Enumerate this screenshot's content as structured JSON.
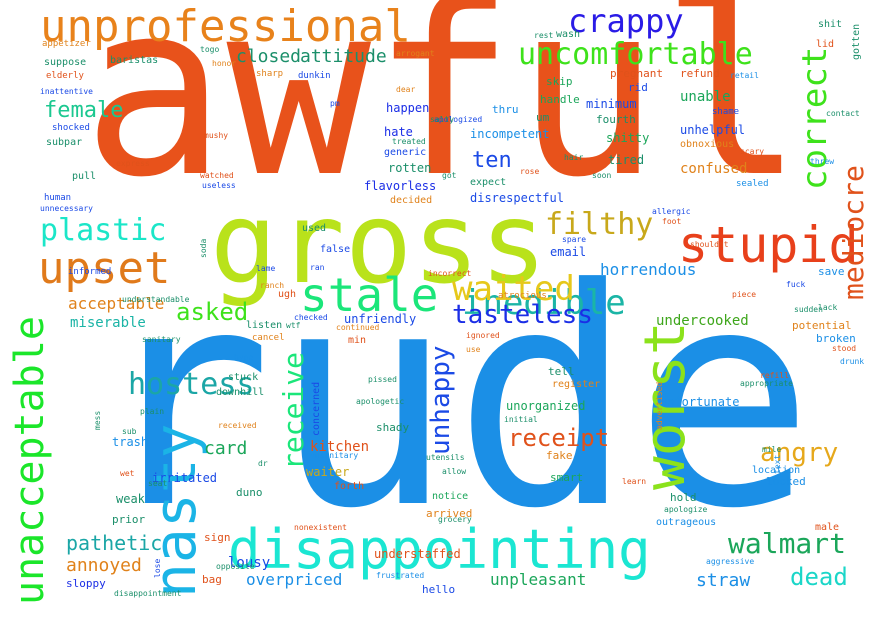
{
  "words": [
    {
      "id": "awful",
      "text": "awful",
      "color": "#e8521b"
    },
    {
      "id": "rude",
      "text": "rude",
      "color": "#1b8fe6"
    },
    {
      "id": "gross",
      "text": "gross",
      "color": "#b9e21b"
    },
    {
      "id": "disappointing",
      "text": "disappointing",
      "color": "#1be6d2"
    },
    {
      "id": "unprofessional",
      "text": "unprofessional",
      "color": "#e8821b"
    },
    {
      "id": "stupid",
      "text": "stupid",
      "color": "#e8401b"
    },
    {
      "id": "upset",
      "text": "upset",
      "color": "#e07a1b"
    },
    {
      "id": "stale",
      "text": "stale",
      "color": "#1be67a"
    },
    {
      "id": "nasty",
      "text": "nasty",
      "color": "#1bb4e6"
    },
    {
      "id": "unacceptable",
      "text": "unacceptable",
      "color": "#1be62a"
    },
    {
      "id": "worst",
      "text": "worst",
      "color": "#8be21b"
    },
    {
      "id": "crappy",
      "text": "crappy",
      "color": "#2a1be6"
    },
    {
      "id": "uncomfortable",
      "text": "uncomfortable",
      "color": "#3ee21b"
    },
    {
      "id": "inedible",
      "text": "inedible",
      "color": "#1bb5a6"
    },
    {
      "id": "waited",
      "text": "waited",
      "color": "#e6c81b"
    },
    {
      "id": "filthy",
      "text": "filthy",
      "color": "#c8a81b"
    },
    {
      "id": "correct",
      "text": "correct",
      "color": "#3ee21b"
    },
    {
      "id": "mediocre",
      "text": "mediocre",
      "color": "#e0521b"
    },
    {
      "id": "plastic",
      "text": "plastic",
      "color": "#1be6c8"
    },
    {
      "id": "hostess",
      "text": "hostess",
      "color": "#1ba6a6"
    },
    {
      "id": "receive",
      "text": "receive",
      "color": "#1be67a"
    },
    {
      "id": "unhappy",
      "text": "unhappy",
      "color": "#1b4ae6"
    },
    {
      "id": "tasteless",
      "text": "tasteless",
      "color": "#1b2ee6"
    },
    {
      "id": "walmart",
      "text": "walmart",
      "color": "#1ba65a"
    },
    {
      "id": "angry",
      "text": "angry",
      "color": "#e6a81b"
    },
    {
      "id": "dead",
      "text": "dead",
      "color": "#1bd6c8"
    },
    {
      "id": "asked",
      "text": "asked",
      "color": "#3ee21b"
    },
    {
      "id": "female",
      "text": "female",
      "color": "#1bc890"
    },
    {
      "id": "receipt",
      "text": "receipt",
      "color": "#e0521b"
    },
    {
      "id": "horrendous",
      "text": "horrendous",
      "color": "#1b8fe6"
    },
    {
      "id": "attitude",
      "text": "attitude",
      "color": "#1b8f6a"
    },
    {
      "id": "closed",
      "text": "closed",
      "color": "#1b8f6a"
    },
    {
      "id": "ten",
      "text": "ten",
      "color": "#1b4ae6"
    },
    {
      "id": "pathetic",
      "text": "pathetic",
      "color": "#1ba6a6"
    },
    {
      "id": "annoyed",
      "text": "annoyed",
      "color": "#e0821b"
    },
    {
      "id": "overpriced",
      "text": "overpriced",
      "color": "#1b8fe6"
    },
    {
      "id": "unpleasant",
      "text": "unpleasant",
      "color": "#1ba65a"
    },
    {
      "id": "straw",
      "text": "straw",
      "color": "#1b8fe6"
    },
    {
      "id": "acceptable",
      "text": "acceptable",
      "color": "#e0821b"
    },
    {
      "id": "miserable",
      "text": "miserable",
      "color": "#1bb4a6"
    },
    {
      "id": "card",
      "text": "card",
      "color": "#1ba65a"
    },
    {
      "id": "kitchen",
      "text": "kitchen",
      "color": "#e0521b"
    },
    {
      "id": "undercooked",
      "text": "undercooked",
      "color": "#3ea61b"
    },
    {
      "id": "unable",
      "text": "unable",
      "color": "#1ba65a"
    },
    {
      "id": "confused",
      "text": "confused",
      "color": "#e0821b"
    },
    {
      "id": "lousy",
      "text": "lousy",
      "color": "#1b4ae6"
    },
    {
      "id": "email",
      "text": "email",
      "color": "#1b4ae6"
    },
    {
      "id": "unfriendly",
      "text": "unfriendly",
      "color": "#1b4ae6"
    },
    {
      "id": "minimum",
      "text": "minimum",
      "color": "#1b4ae6"
    },
    {
      "id": "unhelpful",
      "text": "unhelpful",
      "color": "#1b4ae6"
    },
    {
      "id": "incompetent",
      "text": "incompetent",
      "color": "#1b8fe6"
    },
    {
      "id": "unorganized",
      "text": "unorganized",
      "color": "#1ba65a"
    },
    {
      "id": "unfortunate",
      "text": "unfortunate",
      "color": "#1b8fe6"
    },
    {
      "id": "understaffed",
      "text": "understaffed",
      "color": "#e0521b"
    },
    {
      "id": "waiter",
      "text": "waiter",
      "color": "#c8a81b"
    },
    {
      "id": "weak",
      "text": "weak",
      "color": "#1b8f6a"
    },
    {
      "id": "irritated",
      "text": "irritated",
      "color": "#1b4ae6"
    },
    {
      "id": "trash",
      "text": "trash",
      "color": "#1b8fe6"
    },
    {
      "id": "flavorless",
      "text": "flavorless",
      "color": "#1b2ee6"
    },
    {
      "id": "rotten",
      "text": "rotten",
      "color": "#1b8f6a"
    },
    {
      "id": "hate",
      "text": "hate",
      "color": "#1b2ee6"
    },
    {
      "id": "happen",
      "text": "happen",
      "color": "#1b2ee6"
    },
    {
      "id": "disrespectful",
      "text": "disrespectful",
      "color": "#1b4ae6"
    },
    {
      "id": "shitty",
      "text": "shitty",
      "color": "#1ba65a"
    },
    {
      "id": "tired",
      "text": "tired",
      "color": "#1b8f6a"
    },
    {
      "id": "handle",
      "text": "handle",
      "color": "#1ba65a"
    },
    {
      "id": "fourth",
      "text": "fourth",
      "color": "#1b8f6a"
    },
    {
      "id": "skip",
      "text": "skip",
      "color": "#1ba65a"
    },
    {
      "id": "pregnant",
      "text": "pregnant",
      "color": "#e0521b"
    },
    {
      "id": "refund",
      "text": "refund",
      "color": "#e0521b"
    },
    {
      "id": "rid",
      "text": "rid",
      "color": "#1b4ae6"
    },
    {
      "id": "thru",
      "text": "thru",
      "color": "#1b8fe6"
    },
    {
      "id": "um",
      "text": "um",
      "color": "#1b8f6a"
    },
    {
      "id": "concerned",
      "text": "concerned",
      "color": "#1b4ae6"
    },
    {
      "id": "shady",
      "text": "shady",
      "color": "#1b8f6a"
    },
    {
      "id": "tell",
      "text": "tell",
      "color": "#1b8f6a"
    },
    {
      "id": "register",
      "text": "register",
      "color": "#e0821b"
    },
    {
      "id": "smart",
      "text": "smart",
      "color": "#1ba65a"
    },
    {
      "id": "fake",
      "text": "fake",
      "color": "#e0821b"
    },
    {
      "id": "hold",
      "text": "hold",
      "color": "#1b8f6a"
    },
    {
      "id": "looked",
      "text": "looked",
      "color": "#1b8fe6"
    },
    {
      "id": "outrageous",
      "text": "outrageous",
      "color": "#1b8fe6"
    },
    {
      "id": "potential",
      "text": "potential",
      "color": "#e0821b"
    },
    {
      "id": "broken",
      "text": "broken",
      "color": "#1b8fe6"
    },
    {
      "id": "save",
      "text": "save",
      "color": "#1b8fe6"
    },
    {
      "id": "duno",
      "text": "duno",
      "color": "#1b8f6a"
    },
    {
      "id": "sign",
      "text": "sign",
      "color": "#e0521b"
    },
    {
      "id": "bag",
      "text": "bag",
      "color": "#e0521b"
    },
    {
      "id": "prior",
      "text": "prior",
      "color": "#1b8f6a"
    },
    {
      "id": "sloppy",
      "text": "sloppy",
      "color": "#1b2ee6"
    },
    {
      "id": "hello",
      "text": "hello",
      "color": "#1b4ae6"
    },
    {
      "id": "arrived",
      "text": "arrived",
      "color": "#e0821b"
    },
    {
      "id": "notice",
      "text": "notice",
      "color": "#1ba65a"
    },
    {
      "id": "forth",
      "text": "forth",
      "color": "#e0521b"
    },
    {
      "id": "male",
      "text": "male",
      "color": "#e0521b"
    },
    {
      "id": "used",
      "text": "used",
      "color": "#1b8f6a"
    },
    {
      "id": "false",
      "text": "false",
      "color": "#1b4ae6"
    },
    {
      "id": "generic",
      "text": "generic",
      "color": "#1b4ae6"
    },
    {
      "id": "expect",
      "text": "expect",
      "color": "#1b8f6a"
    },
    {
      "id": "decided",
      "text": "decided",
      "color": "#e0821b"
    },
    {
      "id": "shocked",
      "text": "shocked",
      "color": "#1b4ae6"
    },
    {
      "id": "subpar",
      "text": "subpar",
      "color": "#1b8f6a"
    },
    {
      "id": "pull",
      "text": "pull",
      "color": "#1b8f6a"
    },
    {
      "id": "informed",
      "text": "informed",
      "color": "#1b4ae6"
    },
    {
      "id": "suppose",
      "text": "suppose",
      "color": "#1b8f6a"
    },
    {
      "id": "elderly",
      "text": "elderly",
      "color": "#e0521b"
    },
    {
      "id": "baristas",
      "text": "baristas",
      "color": "#1b8f6a"
    },
    {
      "id": "appetizer",
      "text": "appetizer",
      "color": "#e0821b"
    },
    {
      "id": "min",
      "text": "min",
      "color": "#e0521b"
    },
    {
      "id": "listen",
      "text": "listen",
      "color": "#1b8f6a"
    },
    {
      "id": "cancel",
      "text": "cancel",
      "color": "#e0821b"
    },
    {
      "id": "stuck",
      "text": "stuck",
      "color": "#1b8f6a"
    },
    {
      "id": "downhill",
      "text": "downhill",
      "color": "#1b8f6a"
    },
    {
      "id": "ugh",
      "text": "ugh",
      "color": "#e0521b"
    },
    {
      "id": "dunkin",
      "text": "dunkin",
      "color": "#1b4ae6"
    },
    {
      "id": "sharp",
      "text": "sharp",
      "color": "#e0821b"
    },
    {
      "id": "shit",
      "text": "shit",
      "color": "#1b8f6a"
    },
    {
      "id": "lid",
      "text": "lid",
      "color": "#e0521b"
    },
    {
      "id": "gotten",
      "text": "gotten",
      "color": "#1b8f6a"
    },
    {
      "id": "obnoxious",
      "text": "obnoxious",
      "color": "#e0821b"
    },
    {
      "id": "shame",
      "text": "shame",
      "color": "#1b4ae6"
    },
    {
      "id": "sealed",
      "text": "sealed",
      "color": "#1b8fe6"
    },
    {
      "id": "wash",
      "text": "wash",
      "color": "#1b8f6a"
    },
    {
      "id": "ran",
      "text": "ran",
      "color": "#1b4ae6"
    },
    {
      "id": "lame",
      "text": "lame",
      "color": "#1b4ae6"
    },
    {
      "id": "mushy",
      "text": "mushy",
      "color": "#e0521b"
    },
    {
      "id": "useless",
      "text": "useless",
      "color": "#1b4ae6"
    },
    {
      "id": "watched",
      "text": "watched",
      "color": "#e0521b"
    },
    {
      "id": "express",
      "text": "express",
      "color": "#e0521b"
    },
    {
      "id": "human",
      "text": "human",
      "color": "#1b4ae6"
    },
    {
      "id": "hype",
      "text": "hype",
      "color": "#1b8fe6"
    },
    {
      "id": "pissed",
      "text": "pissed",
      "color": "#1b8f6a"
    },
    {
      "id": "spare",
      "text": "spare",
      "color": "#1b4ae6"
    },
    {
      "id": "piece",
      "text": "piece",
      "color": "#e0521b"
    },
    {
      "id": "lack",
      "text": "lack",
      "color": "#1b8f6a"
    },
    {
      "id": "stood",
      "text": "stood",
      "color": "#e0521b"
    },
    {
      "id": "drunk",
      "text": "drunk",
      "color": "#1b8fe6"
    },
    {
      "id": "scary",
      "text": "scary",
      "color": "#e0521b"
    },
    {
      "id": "mile",
      "text": "mile",
      "color": "#1b8f6a"
    },
    {
      "id": "location",
      "text": "location",
      "color": "#1b8fe6"
    },
    {
      "id": "learn",
      "text": "learn",
      "color": "#e0521b"
    },
    {
      "id": "allow",
      "text": "allow",
      "color": "#1b8f6a"
    },
    {
      "id": "utensils",
      "text": "utensils",
      "color": "#1b8f6a"
    },
    {
      "id": "sub",
      "text": "sub",
      "color": "#1b8f6a"
    },
    {
      "id": "received",
      "text": "received",
      "color": "#e0821b"
    },
    {
      "id": "wet",
      "text": "wet",
      "color": "#e0521b"
    },
    {
      "id": "seat",
      "text": "seat",
      "color": "#1b8f6a"
    },
    {
      "id": "hair",
      "text": "hair",
      "color": "#1b8f6a"
    },
    {
      "id": "rose",
      "text": "rose",
      "color": "#e0521b"
    },
    {
      "id": "soon",
      "text": "soon",
      "color": "#1b8f6a"
    },
    {
      "id": "threw",
      "text": "threw",
      "color": "#1b8fe6"
    },
    {
      "id": "foot",
      "text": "foot",
      "color": "#e0521b"
    },
    {
      "id": "allergic",
      "text": "allergic",
      "color": "#1b4ae6"
    },
    {
      "id": "shouldnt",
      "text": "shouldnt",
      "color": "#e0521b"
    },
    {
      "id": "checked",
      "text": "checked",
      "color": "#1b4ae6"
    },
    {
      "id": "ranch",
      "text": "ranch",
      "color": "#e0821b"
    },
    {
      "id": "sanitary",
      "text": "sanitary",
      "color": "#1b8f6a"
    },
    {
      "id": "plain",
      "text": "plain",
      "color": "#1b8f6a"
    },
    {
      "id": "mess",
      "text": "mess",
      "color": "#1b8f6a"
    },
    {
      "id": "frustrated",
      "text": "frustrated",
      "color": "#1b8fe6"
    },
    {
      "id": "nonexistent",
      "text": "nonexistent",
      "color": "#e0521b"
    },
    {
      "id": "disappointment",
      "text": "disappointment",
      "color": "#1b8f6a"
    },
    {
      "id": "aggressive",
      "text": "aggressive",
      "color": "#1b8fe6"
    },
    {
      "id": "apologize",
      "text": "apologize",
      "color": "#1b8f6a"
    },
    {
      "id": "grocery",
      "text": "grocery",
      "color": "#1b8f6a"
    },
    {
      "id": "refill",
      "text": "refill",
      "color": "#e0521b"
    },
    {
      "id": "appropriate",
      "text": "appropriate",
      "color": "#1b8f6a"
    },
    {
      "id": "advertised",
      "text": "advertised",
      "color": "#e0821b"
    },
    {
      "id": "initial",
      "text": "initial",
      "color": "#1b8f6a"
    },
    {
      "id": "incorrect",
      "text": "incorrect",
      "color": "#e0521b"
    },
    {
      "id": "atrocious",
      "text": "atrocious",
      "color": "#e0821b"
    },
    {
      "id": "apologized",
      "text": "apologized",
      "color": "#1b4ae6"
    },
    {
      "id": "treated",
      "text": "treated",
      "color": "#1b8f6a"
    },
    {
      "id": "salty",
      "text": "salty",
      "color": "#1b8f6a"
    },
    {
      "id": "dear",
      "text": "dear",
      "color": "#e0821b"
    },
    {
      "id": "pm",
      "text": "pm",
      "color": "#1b4ae6"
    },
    {
      "id": "arrogant",
      "text": "arrogant",
      "color": "#e0821b"
    },
    {
      "id": "rest",
      "text": "rest",
      "color": "#1b8f6a"
    },
    {
      "id": "togo",
      "text": "togo",
      "color": "#1b8f6a"
    },
    {
      "id": "honor",
      "text": "honor",
      "color": "#e0821b"
    },
    {
      "id": "inattentive",
      "text": "inattentive",
      "color": "#1b4ae6"
    },
    {
      "id": "unnecessary",
      "text": "unnecessary",
      "color": "#1b4ae6"
    },
    {
      "id": "retail",
      "text": "retail",
      "color": "#1b8fe6"
    },
    {
      "id": "contact",
      "text": "contact",
      "color": "#1b8f6a"
    },
    {
      "id": "fuck",
      "text": "fuck",
      "color": "#1b4ae6"
    },
    {
      "id": "sudden",
      "text": "sudden",
      "color": "#1b8f6a"
    },
    {
      "id": "continued",
      "text": "continued",
      "color": "#e0821b"
    },
    {
      "id": "ignored",
      "text": "ignored",
      "color": "#e0521b"
    },
    {
      "id": "use",
      "text": "use",
      "color": "#e0821b"
    },
    {
      "id": "soda",
      "text": "soda",
      "color": "#1b8f6a"
    },
    {
      "id": "understandable",
      "text": "understandable",
      "color": "#1b8f6a"
    },
    {
      "id": "wtf",
      "text": "wtf",
      "color": "#1b8f6a"
    },
    {
      "id": "apologetic",
      "text": "apologetic",
      "color": "#1b8f6a"
    },
    {
      "id": "unsanitary",
      "text": "unsanitary",
      "color": "#1b8fe6"
    },
    {
      "id": "dr",
      "text": "dr",
      "color": "#1b8f6a"
    },
    {
      "id": "text",
      "text": "text",
      "color": "#1b8fe6"
    },
    {
      "id": "lose",
      "text": "lose",
      "color": "#1b4ae6"
    },
    {
      "id": "opposite",
      "text": "opposite",
      "color": "#1b8f6a"
    },
    {
      "id": "got",
      "text": "got",
      "color": "#1b8f6a"
    }
  ]
}
